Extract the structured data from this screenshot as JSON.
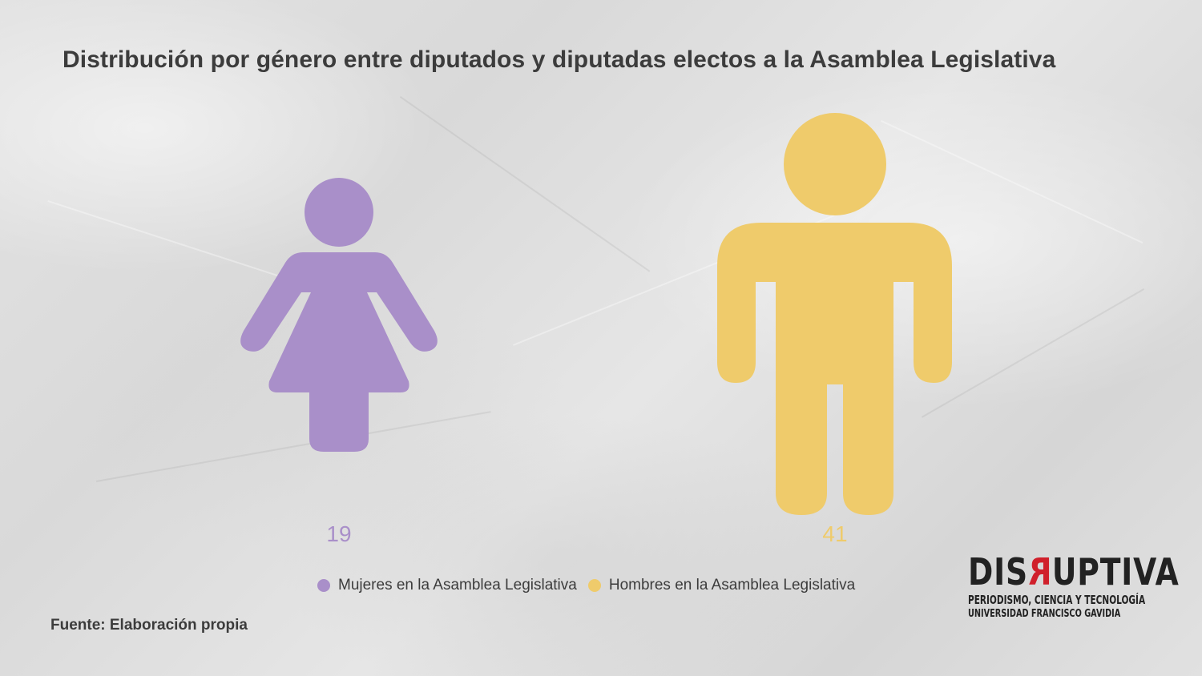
{
  "title": "Distribución por género entre diputados y diputadas electos a la Asamblea Legislativa",
  "source": "Fuente: Elaboración propia",
  "colors": {
    "women": "#a98fc9",
    "men": "#efcb6b"
  },
  "chart_data": {
    "type": "pictograph",
    "categories": [
      "Mujeres en la Asamblea Legislativa",
      "Hombres en la Asamblea Legislativa"
    ],
    "values": [
      19,
      41
    ],
    "value_labels": [
      "19",
      "41"
    ],
    "icons": [
      "woman-icon",
      "man-icon"
    ],
    "legend": [
      "Mujeres en la Asamblea Legislativa",
      "Hombres en la Asamblea Legislativa"
    ],
    "legend_position": "bottom"
  },
  "logo": {
    "name_parts": [
      "DIS",
      "R",
      "UPTIVA"
    ],
    "tagline": "PERIODISMO, CIENCIA Y TECNOLOGÍA",
    "institution": "UNIVERSIDAD FRANCISCO GAVIDIA"
  }
}
